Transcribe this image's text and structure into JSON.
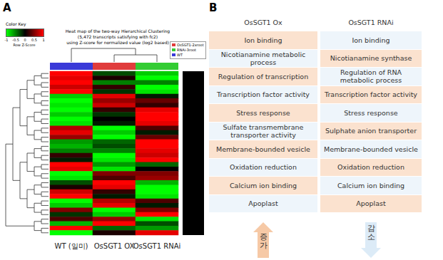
{
  "chart_data": {
    "type": "heatmap",
    "panel_label": "A",
    "title": [
      "Heat map of the two-way Hierarchical Clustering",
      "(5,472 transcripts satisfying with fc2)",
      "using Z-score for normalized value (log2 based)"
    ],
    "categories": [
      "WT (일미)",
      "OsSGT1 OX",
      "OsSGT1 RNAi"
    ],
    "column_colors": [
      "#3a3ad8",
      "#e03c3c",
      "#33cc33"
    ],
    "group_legend": [
      {
        "name": "OsSGT1-2xroot",
        "color": "#e03c3c"
      },
      {
        "name": "RNAi-3root",
        "color": "#33cc33"
      },
      {
        "name": "WT",
        "color": "#3a3ad8"
      }
    ],
    "colorbar_title": "Color Key",
    "colorbar_label": "Row Z-Score",
    "color_range": [
      -1,
      1
    ],
    "color_ticks": [
      -1,
      -0.5,
      0,
      0.5,
      1
    ],
    "colors": [
      "#00ff00",
      "#000000",
      "#ff0000"
    ],
    "cells": [
      [
        1,
        -0.3,
        -0.8
      ],
      [
        0.9,
        0.1,
        -1
      ],
      [
        1,
        -0.5,
        -0.5
      ],
      [
        0.8,
        0.2,
        -1
      ],
      [
        1,
        -0.2,
        -0.9
      ],
      [
        -0.8,
        0.9,
        -0.1
      ],
      [
        -1,
        0.6,
        0.4
      ],
      [
        -0.9,
        0.8,
        0.2
      ],
      [
        -1,
        0.2,
        0.9
      ],
      [
        -0.8,
        -0.2,
        1
      ],
      [
        -1,
        0,
        1
      ],
      [
        -0.9,
        -0.1,
        0.9
      ],
      [
        0.7,
        -1,
        0.3
      ],
      [
        0.9,
        -0.8,
        -0.1
      ],
      [
        0.6,
        -1,
        0.4
      ],
      [
        -0.6,
        -0.4,
        1
      ],
      [
        -0.7,
        -0.3,
        1
      ],
      [
        -0.5,
        -0.5,
        0.9
      ],
      [
        0.2,
        -1,
        0.8
      ],
      [
        -0.1,
        -0.9,
        1
      ],
      [
        1,
        -0.6,
        -0.4
      ],
      [
        0.9,
        -0.9,
        0
      ],
      [
        -1,
        0.5,
        0.5
      ],
      [
        -0.9,
        0.3,
        0.6
      ],
      [
        -0.3,
        1,
        -0.7
      ],
      [
        0.1,
        0.9,
        -1
      ],
      [
        0.8,
        0.2,
        -1
      ],
      [
        1,
        -0.1,
        -0.9
      ],
      [
        -1,
        0.7,
        0.3
      ],
      [
        -0.8,
        0.9,
        -0.1
      ],
      [
        0.5,
        -1,
        0.5
      ],
      [
        -0.2,
        -0.8,
        1
      ],
      [
        0.3,
        0.6,
        -0.9
      ],
      [
        -0.7,
        1,
        -0.3
      ],
      [
        1,
        -0.4,
        -0.6
      ],
      [
        -1,
        0.1,
        0.9
      ]
    ]
  },
  "panel_b": {
    "panel_label": "B",
    "columns": [
      "OsSGT1 Ox",
      "OsSGT1 RNAi"
    ],
    "rows": [
      [
        "Ion binding",
        "Ion binding"
      ],
      [
        "Nicotianamine metabolic process",
        "Nicotianamine synthase"
      ],
      [
        "Regulation of transcription",
        "Regulation of RNA metabolic process"
      ],
      [
        "Transcription factor activity",
        "Transcription factor activity"
      ],
      [
        "Stress response",
        "Stress response"
      ],
      [
        "Sulfate transmembrane transporter activity",
        "Sulphate anion transporter"
      ],
      [
        "Membrane-bounded vesicle",
        "Membrane-bounded vesicle"
      ],
      [
        "Oxidation reduction",
        "Oxidation reduction"
      ],
      [
        "Calcium ion binding",
        "Calcium ion binding"
      ],
      [
        "Apoplast",
        "Apoplast"
      ]
    ],
    "arrows": [
      {
        "label": "증가",
        "direction": "up"
      },
      {
        "label": "감소",
        "direction": "down"
      }
    ]
  }
}
